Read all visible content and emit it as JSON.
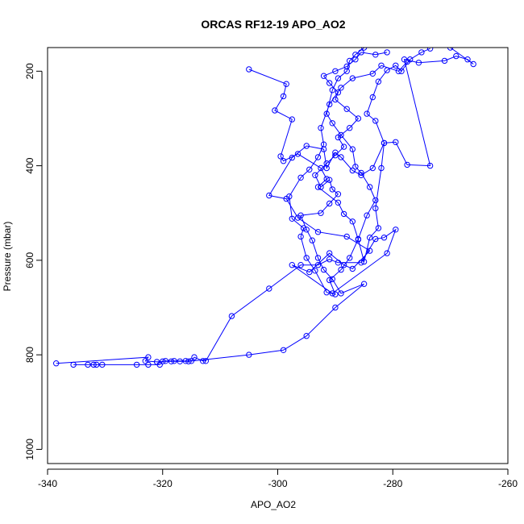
{
  "chart_data": {
    "type": "scatter",
    "title": "ORCAS RF12-19 APO_AO2",
    "xlabel": "APO_AO2",
    "ylabel": "Pressure (mbar)",
    "xlim": [
      -340,
      -260
    ],
    "ylim": [
      1030,
      150
    ],
    "y_reversed": true,
    "xticks": [
      -340,
      -320,
      -300,
      -280,
      -260
    ],
    "yticks": [
      200,
      400,
      600,
      800,
      1000
    ],
    "grid": false,
    "point_style": "open-circle",
    "line_style": "connected",
    "series_color": "#0000ff",
    "series": [
      {
        "points": [
          [
            -338.5,
            818
          ],
          [
            -322.5,
            805
          ],
          [
            -323.0,
            813
          ],
          [
            -321.0,
            815
          ],
          [
            -319.5,
            813
          ],
          [
            -318.0,
            813
          ],
          [
            -316.0,
            813
          ],
          [
            -315.0,
            813
          ],
          [
            -314.5,
            805
          ],
          [
            -313.0,
            813
          ],
          [
            -312.5,
            813
          ],
          [
            -308.0,
            718
          ],
          [
            -301.5,
            660
          ],
          [
            -296.0,
            610
          ],
          [
            -293.0,
            610
          ],
          [
            -291.0,
            598
          ],
          [
            -289.5,
            605
          ],
          [
            -285.5,
            605
          ],
          [
            -283.0,
            555
          ],
          [
            -281.5,
            552
          ],
          [
            -279.5,
            535
          ],
          [
            -281.0,
            585
          ],
          [
            -290.5,
            670
          ],
          [
            -297.5,
            610
          ],
          [
            -294.5,
            625
          ],
          [
            -291.0,
            585
          ],
          [
            -288.5,
            610
          ],
          [
            -287.0,
            618
          ],
          [
            -284.0,
            580
          ],
          [
            -288.0,
            550
          ],
          [
            -293.0,
            540
          ],
          [
            -296.5,
            510
          ],
          [
            -298.5,
            470
          ],
          [
            -301.5,
            463
          ],
          [
            -297.5,
            383
          ],
          [
            -295.0,
            358
          ],
          [
            -292.0,
            365
          ],
          [
            -291.5,
            405
          ],
          [
            -290.0,
            372
          ],
          [
            -289.0,
            382
          ],
          [
            -287.0,
            410
          ],
          [
            -285.5,
            420
          ],
          [
            -283.5,
            405
          ],
          [
            -281.5,
            352
          ],
          [
            -279.5,
            350
          ],
          [
            -277.5,
            398
          ],
          [
            -273.5,
            400
          ],
          [
            -278.0,
            175
          ],
          [
            -275.5,
            182
          ],
          [
            -271.0,
            178
          ],
          [
            -269.0,
            168
          ],
          [
            -267.0,
            175
          ],
          [
            -266.0,
            185
          ],
          [
            -270.0,
            150
          ]
        ]
      },
      {
        "points": [
          [
            -335.5,
            821
          ],
          [
            -333.0,
            821
          ],
          [
            -332.0,
            821
          ],
          [
            -331.5,
            821
          ],
          [
            -330.5,
            821
          ],
          [
            -324.5,
            821
          ],
          [
            -322.5,
            821
          ],
          [
            -320.5,
            821
          ],
          [
            -320.0,
            814
          ],
          [
            -318.5,
            814
          ],
          [
            -317.0,
            814
          ],
          [
            -315.5,
            814
          ],
          [
            -305.0,
            800
          ],
          [
            -299.0,
            790
          ],
          [
            -295.0,
            760
          ],
          [
            -290.0,
            700
          ],
          [
            -285.0,
            650
          ],
          [
            -289.0,
            670
          ],
          [
            -290.5,
            640
          ],
          [
            -292.0,
            620
          ],
          [
            -293.0,
            595
          ],
          [
            -294.0,
            558
          ],
          [
            -295.0,
            535
          ],
          [
            -296.0,
            505
          ],
          [
            -292.5,
            500
          ],
          [
            -291.0,
            480
          ],
          [
            -289.5,
            460
          ],
          [
            -290.5,
            450
          ],
          [
            -291.0,
            430
          ],
          [
            -292.5,
            445
          ],
          [
            -293.5,
            420
          ],
          [
            -291.5,
            395
          ],
          [
            -290.0,
            378
          ],
          [
            -288.5,
            360
          ],
          [
            -289.5,
            340
          ],
          [
            -287.5,
            320
          ],
          [
            -286.0,
            300
          ],
          [
            -288.0,
            280
          ],
          [
            -290.0,
            260
          ],
          [
            -289.5,
            245
          ],
          [
            -291.0,
            225
          ],
          [
            -292.0,
            210
          ],
          [
            -290.0,
            200
          ],
          [
            -288.0,
            190
          ],
          [
            -286.5,
            175
          ],
          [
            -285.5,
            160
          ],
          [
            -283.0,
            165
          ],
          [
            -281.0,
            160
          ]
        ]
      },
      {
        "points": [
          [
            -305.0,
            196
          ],
          [
            -298.5,
            227
          ],
          [
            -299.0,
            253
          ],
          [
            -300.5,
            283
          ],
          [
            -297.5,
            302
          ],
          [
            -299.5,
            380
          ],
          [
            -299.0,
            390
          ],
          [
            -296.5,
            375
          ],
          [
            -292.5,
            405
          ],
          [
            -291.5,
            428
          ],
          [
            -293.0,
            445
          ],
          [
            -289.5,
            478
          ],
          [
            -288.5,
            502
          ],
          [
            -287.0,
            518
          ],
          [
            -286.0,
            556
          ],
          [
            -285.0,
            603
          ],
          [
            -284.0,
            552
          ],
          [
            -282.5,
            532
          ],
          [
            -283.0,
            490
          ],
          [
            -282.0,
            405
          ],
          [
            -281.5,
            352
          ],
          [
            -283.0,
            305
          ],
          [
            -284.5,
            290
          ],
          [
            -283.5,
            255
          ],
          [
            -282.5,
            222
          ],
          [
            -281.0,
            198
          ],
          [
            -279.5,
            188
          ],
          [
            -278.5,
            200
          ],
          [
            -277.0,
            175
          ],
          [
            -275.0,
            160
          ],
          [
            -273.5,
            152
          ]
        ]
      },
      {
        "points": [
          [
            -285.0,
            150
          ],
          [
            -286.5,
            165
          ],
          [
            -287.5,
            178
          ],
          [
            -288.0,
            200
          ],
          [
            -289.5,
            215
          ],
          [
            -290.5,
            240
          ],
          [
            -291.5,
            290
          ],
          [
            -290.5,
            310
          ],
          [
            -289.0,
            335
          ],
          [
            -287.0,
            365
          ],
          [
            -286.5,
            402
          ],
          [
            -285.5,
            415
          ],
          [
            -284.0,
            445
          ],
          [
            -283.0,
            473
          ],
          [
            -284.5,
            505
          ],
          [
            -286.0,
            555
          ],
          [
            -287.5,
            595
          ],
          [
            -289.0,
            620
          ],
          [
            -291.0,
            642
          ],
          [
            -290.0,
            672
          ],
          [
            -291.5,
            668
          ],
          [
            -293.5,
            622
          ],
          [
            -295.0,
            595
          ],
          [
            -296.0,
            550
          ],
          [
            -295.5,
            532
          ],
          [
            -297.5,
            512
          ],
          [
            -298.0,
            465
          ],
          [
            -296.0,
            425
          ],
          [
            -294.5,
            408
          ],
          [
            -293.0,
            382
          ],
          [
            -292.0,
            355
          ],
          [
            -292.5,
            320
          ],
          [
            -291.0,
            270
          ],
          [
            -289.0,
            235
          ],
          [
            -287.0,
            215
          ],
          [
            -283.5,
            205
          ],
          [
            -282.0,
            188
          ],
          [
            -279.0,
            200
          ],
          [
            -277.5,
            180
          ]
        ]
      }
    ]
  }
}
